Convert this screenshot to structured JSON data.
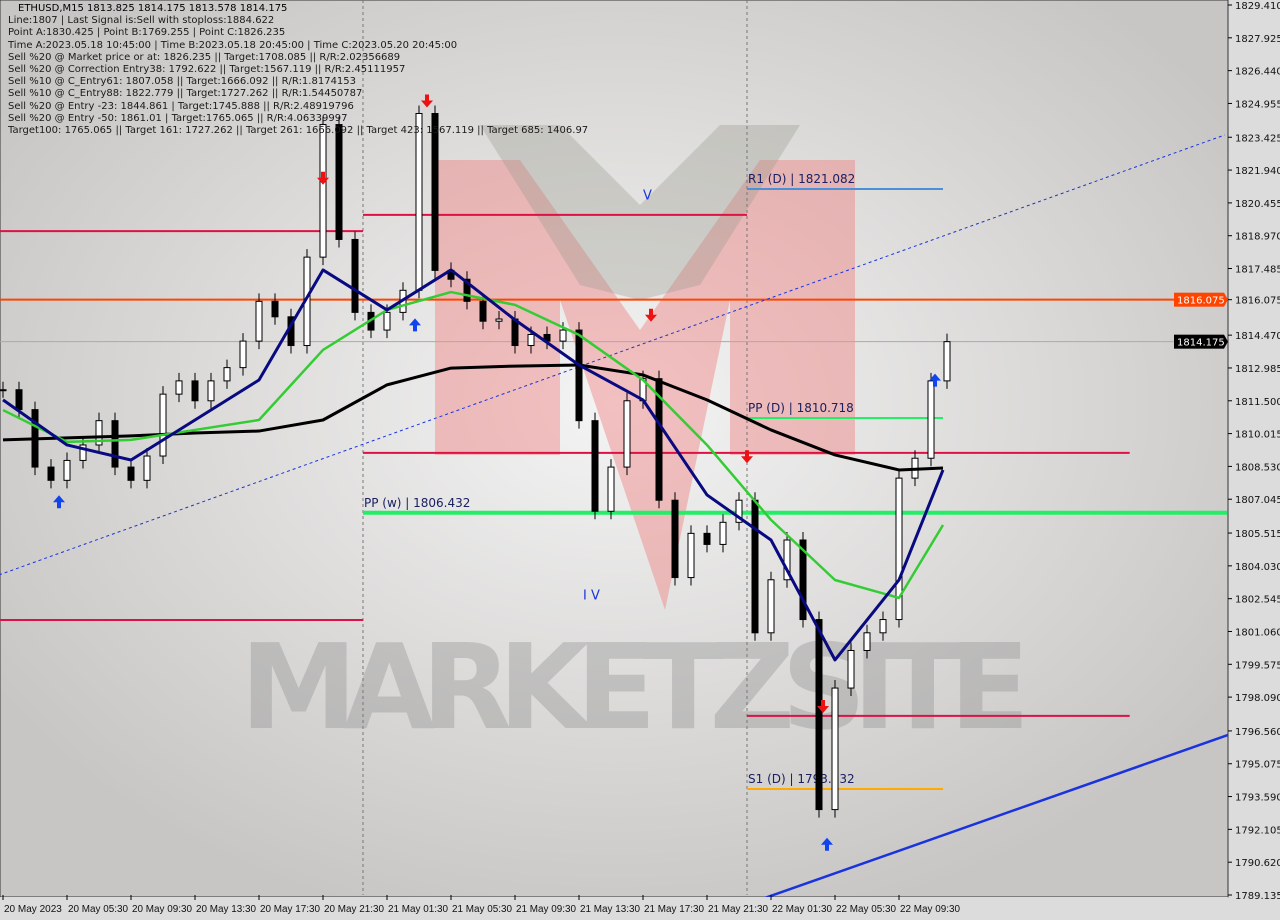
{
  "header": {
    "title": "ETHUSD,M15  1813.825 1814.175 1813.578 1814.175",
    "lines": [
      "Line:1807 | Last Signal is:Sell with stoploss:1884.622",
      "Point A:1830.425 | Point B:1769.255 | Point C:1826.235",
      "Time A:2023.05.18 10:45:00 | Time B:2023.05.18 20:45:00 | Time C:2023.05.20 20:45:00",
      "Sell %20 @ Market price or at: 1826.235 || Target:1708.085 || R/R:2.02356689",
      "Sell %20 @ Correction Entry38: 1792.622 || Target:1567.119 || R/R:2.45111957",
      "Sell %10 @ C_Entry61: 1807.058 || Target:1666.092 || R/R:1.8174153",
      "Sell %10 @ C_Entry88: 1822.779 || Target:1727.262 || R/R:1.54450787",
      "Sell %20 @ Entry -23: 1844.861 | Target:1745.888 || R/R:2.48919796",
      "Sell %20 @ Entry -50: 1861.01 | Target:1765.065 || R/R:4.06339997",
      "Target100: 1765.065 || Target 161: 1727.262 || Target 261: 1666.092 || Target 423: 1567.119 || Target 685: 1406.97"
    ]
  },
  "watermark": "MARKETZSITE",
  "colors": {
    "background": "#d4d4d4",
    "bull": "#ffffff",
    "bear": "#000000",
    "ma_slow": "#000000",
    "ma_mid": "#33cc33",
    "ma_fast": "#0a0a80",
    "trend": "#1a33dd",
    "current_price_bg": "#000000",
    "highlight_price_bg": "#ff4400"
  },
  "chart_data": {
    "type": "candlestick",
    "symbol": "ETHUSD",
    "timeframe": "M15",
    "ylim": [
      1789.135,
      1829.41
    ],
    "y_ticks": [
      "1829.410",
      "1827.925",
      "1826.440",
      "1824.955",
      "1823.425",
      "1821.940",
      "1820.455",
      "1818.970",
      "1817.485",
      "1816.075",
      "1814.470",
      "1812.985",
      "1811.500",
      "1810.015",
      "1808.530",
      "1807.045",
      "1805.515",
      "1804.030",
      "1802.545",
      "1801.060",
      "1799.575",
      "1798.090",
      "1796.560",
      "1795.075",
      "1793.590",
      "1792.105",
      "1790.620",
      "1789.135"
    ],
    "x_ticks": [
      "20 May 2023",
      "20 May 05:30",
      "20 May 09:30",
      "20 May 13:30",
      "20 May 17:30",
      "20 May 21:30",
      "21 May 01:30",
      "21 May 05:30",
      "21 May 09:30",
      "21 May 13:30",
      "21 May 17:30",
      "21 May 21:30",
      "22 May 01:30",
      "22 May 05:30",
      "22 May 09:30"
    ],
    "current_price": "1814.175",
    "highlight_price": "1816.075",
    "candles": {
      "start": "2023-05-20 00:00",
      "interval_minutes": 60,
      "close": [
        1812.0,
        1811.1,
        1808.5,
        1807.9,
        1808.8,
        1809.5,
        1810.6,
        1808.5,
        1807.9,
        1809.0,
        1811.8,
        1812.4,
        1811.5,
        1812.4,
        1813.0,
        1814.2,
        1816.0,
        1815.3,
        1814.0,
        1818.0,
        1824.0,
        1818.8,
        1815.5,
        1814.7,
        1815.5,
        1816.5,
        1824.5,
        1817.4,
        1817.0,
        1816.0,
        1815.1,
        1815.2,
        1814.0,
        1814.5,
        1814.2,
        1814.7,
        1810.6,
        1806.5,
        1808.5,
        1811.5,
        1812.5,
        1807.0,
        1803.5,
        1805.5,
        1805.0,
        1806.0,
        1807.0,
        1801.0,
        1803.4,
        1805.2,
        1801.6,
        1793.0,
        1798.5,
        1800.2,
        1801.0,
        1801.6,
        1808.0,
        1808.9,
        1812.4,
        1814.175
      ]
    },
    "moving_averages": {
      "times": [
        "2023-05-20 00:00",
        "2023-05-20 04:00",
        "2023-05-20 08:00",
        "2023-05-20 12:00",
        "2023-05-20 16:00",
        "2023-05-20 20:00",
        "2023-05-21 00:00",
        "2023-05-21 04:00",
        "2023-05-21 08:00",
        "2023-05-21 12:00",
        "2023-05-21 16:00",
        "2023-05-21 20:00",
        "2023-05-22 00:00",
        "2023-05-22 04:00",
        "2023-05-22 08:00",
        "2023-05-22 10:45"
      ],
      "series": [
        {
          "key": "slow",
          "values": [
            1809.73,
            1809.82,
            1809.91,
            1810.04,
            1810.13,
            1810.63,
            1812.22,
            1812.98,
            1813.07,
            1813.12,
            1812.67,
            1811.54,
            1810.18,
            1809.05,
            1808.37,
            1808.46
          ]
        },
        {
          "key": "mid",
          "values": [
            1811.08,
            1809.64,
            1809.73,
            1810.18,
            1810.63,
            1813.8,
            1815.61,
            1816.42,
            1815.84,
            1814.48,
            1812.44,
            1809.5,
            1806.11,
            1803.39,
            1802.58,
            1805.88
          ]
        },
        {
          "key": "fast",
          "values": [
            1811.54,
            1809.5,
            1808.82,
            1810.63,
            1812.44,
            1817.42,
            1815.61,
            1817.42,
            1815.16,
            1813.12,
            1811.54,
            1807.24,
            1805.2,
            1799.77,
            1803.39,
            1808.37
          ]
        }
      ]
    },
    "levels": [
      {
        "price": 1819.18,
        "from": "2023-05-19 23:45",
        "to": "2023-05-20 22:30",
        "color": "#dd1144",
        "label": ""
      },
      {
        "price": 1819.91,
        "from": "2023-05-20 22:30",
        "to": "2023-05-21 22:30",
        "color": "#dd1144",
        "label": ""
      },
      {
        "price": 1816.075,
        "from": "2023-05-19 23:45",
        "to": "2023-05-23 04:30",
        "color": "#ff4400",
        "label": ""
      },
      {
        "price": 1809.14,
        "from": "2023-05-20 22:30",
        "to": "2023-05-22 22:25",
        "color": "#dd1144",
        "label": ""
      },
      {
        "price": 1806.432,
        "from": "2023-05-20 22:30",
        "to": "2023-05-23 04:30",
        "color": "#22ee66",
        "label": "PP (w) | 1806.432",
        "width": 4
      },
      {
        "price": 1801.58,
        "from": "2023-05-19 23:45",
        "to": "2023-05-20 22:30",
        "color": "#dd1144",
        "label": ""
      },
      {
        "price": 1797.24,
        "from": "2023-05-21 22:30",
        "to": "2023-05-22 22:25",
        "color": "#dd1144",
        "label": ""
      },
      {
        "price": 1821.082,
        "from": "2023-05-21 22:30",
        "to": "2023-05-22 10:45",
        "color": "#4a90d9",
        "label": "R1 (D) | 1821.082"
      },
      {
        "price": 1810.718,
        "from": "2023-05-21 22:30",
        "to": "2023-05-22 10:45",
        "color": "#22ee66",
        "label": "PP (D) | 1810.718"
      },
      {
        "price": 1793.932,
        "from": "2023-05-21 22:30",
        "to": "2023-05-22 10:45",
        "color": "#ffaa00",
        "label": "S1 (D) | 1793.932"
      }
    ],
    "trendlines": [
      {
        "from": [
          "2023-05-19 23:45",
          1803.62
        ],
        "to": [
          "2023-05-23 04:22",
          1823.53
        ],
        "style": "dotted"
      },
      {
        "from": [
          "2023-05-21 23:37",
          1789.0
        ],
        "to": [
          "2023-05-23 04:34",
          1796.38
        ],
        "style": "solid"
      }
    ],
    "vertical_separators": [
      "2023-05-20 22:30",
      "2023-05-21 22:30"
    ],
    "wave_labels": [
      {
        "text": "V",
        "time": "2023-05-21 16:00",
        "price": 1820.6
      },
      {
        "text": "I V",
        "time": "2023-05-21 12:15",
        "price": 1802.5
      }
    ],
    "signals": [
      {
        "type": "sell",
        "time": "2023-05-20 20:00",
        "price": 1821.5
      },
      {
        "type": "sell",
        "time": "2023-05-21 02:30",
        "price": 1825.0
      },
      {
        "type": "sell",
        "time": "2023-05-21 16:30",
        "price": 1815.3
      },
      {
        "type": "sell",
        "time": "2023-05-21 22:30",
        "price": 1808.9
      },
      {
        "type": "sell",
        "time": "2023-05-22 03:15",
        "price": 1797.6
      },
      {
        "type": "buy",
        "time": "2023-05-20 03:30",
        "price": 1807.0
      },
      {
        "type": "buy",
        "time": "2023-05-21 01:45",
        "price": 1815.0
      },
      {
        "type": "buy",
        "time": "2023-05-22 03:30",
        "price": 1791.5
      },
      {
        "type": "buy",
        "time": "2023-05-22 10:15",
        "price": 1812.5
      }
    ]
  }
}
